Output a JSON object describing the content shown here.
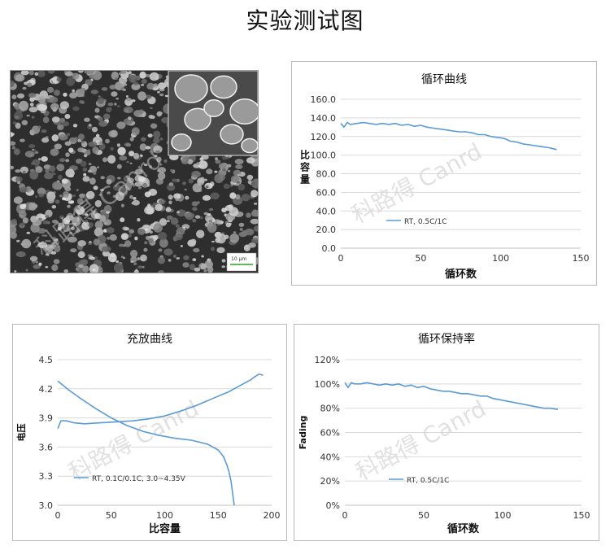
{
  "page_title": "实验测试图",
  "watermark": "科路得 Canrd",
  "sem_image": {
    "scale_label": "10 μm"
  },
  "chart_data": [
    {
      "type": "line",
      "title": "循环曲线",
      "xlabel": "循环数",
      "ylabel": "比\n容\n量",
      "xlim": [
        0,
        150
      ],
      "ylim": [
        0,
        160
      ],
      "x_ticks": [
        "0",
        "50",
        "100",
        "150"
      ],
      "y_ticks": [
        "0.0",
        "20.0",
        "40.0",
        "60.0",
        "80.0",
        "100.0",
        "120.0",
        "140.0",
        "160.0"
      ],
      "legend_position": "lower-left",
      "series": [
        {
          "name": "RT, 0.5C/1C",
          "color": "#5b9bd5",
          "x": [
            0,
            2,
            4,
            6,
            10,
            14,
            18,
            22,
            26,
            30,
            34,
            38,
            42,
            46,
            50,
            54,
            58,
            62,
            66,
            70,
            74,
            78,
            82,
            86,
            90,
            94,
            98,
            102,
            106,
            110,
            114,
            118,
            122,
            126,
            130,
            135
          ],
          "y": [
            134,
            130,
            135,
            133,
            134,
            135,
            134,
            133,
            134,
            133,
            134,
            132,
            133,
            131,
            132,
            130,
            129,
            128,
            127,
            126,
            125,
            125,
            124,
            122,
            122,
            120,
            119,
            118,
            115,
            114,
            112,
            111,
            110,
            109,
            108,
            106
          ]
        }
      ]
    },
    {
      "type": "line",
      "title": "充放曲线",
      "xlabel": "比容量",
      "ylabel": "电压",
      "xlim": [
        0,
        200
      ],
      "ylim": [
        3.0,
        4.5
      ],
      "x_ticks": [
        "0",
        "50",
        "100",
        "150",
        "200"
      ],
      "y_ticks": [
        "3.0",
        "3.3",
        "3.6",
        "3.9",
        "4.2",
        "4.5"
      ],
      "legend_position": "lower-left",
      "series": [
        {
          "name": "RT, 0.1C/0.1C, 3.0~4.35V",
          "color": "#5b9bd5",
          "x": [
            0,
            3,
            8,
            15,
            25,
            40,
            55,
            70,
            85,
            100,
            115,
            130,
            145,
            160,
            170,
            180,
            185,
            188,
            192
          ],
          "y": [
            3.79,
            3.87,
            3.87,
            3.85,
            3.84,
            3.85,
            3.86,
            3.87,
            3.89,
            3.92,
            3.97,
            4.03,
            4.1,
            4.17,
            4.23,
            4.29,
            4.33,
            4.35,
            4.34
          ]
        },
        {
          "name": "",
          "color": "#5b9bd5",
          "x": [
            0,
            10,
            20,
            35,
            50,
            65,
            80,
            95,
            110,
            125,
            140,
            150,
            155,
            158,
            160,
            162,
            163,
            164,
            165
          ],
          "y": [
            4.28,
            4.19,
            4.11,
            4.0,
            3.9,
            3.82,
            3.76,
            3.72,
            3.69,
            3.67,
            3.63,
            3.57,
            3.5,
            3.42,
            3.35,
            3.25,
            3.17,
            3.08,
            3.0
          ]
        }
      ]
    },
    {
      "type": "line",
      "title": "循环保持率",
      "xlabel": "循环数",
      "ylabel": "Fading",
      "xlim": [
        0,
        150
      ],
      "ylim": [
        0,
        120
      ],
      "x_ticks": [
        "0",
        "50",
        "100",
        "150"
      ],
      "y_ticks": [
        "0%",
        "20%",
        "40%",
        "60%",
        "80%",
        "100%",
        "120%"
      ],
      "legend_position": "lower-left",
      "series": [
        {
          "name": "RT, 0.5C/1C",
          "color": "#5b9bd5",
          "x": [
            0,
            2,
            4,
            6,
            10,
            14,
            18,
            22,
            26,
            30,
            34,
            38,
            42,
            46,
            50,
            54,
            58,
            62,
            66,
            70,
            74,
            78,
            82,
            86,
            90,
            94,
            98,
            102,
            106,
            110,
            114,
            118,
            122,
            126,
            130,
            135
          ],
          "y": [
            101,
            97,
            101,
            100,
            100,
            101,
            100,
            99,
            100,
            99,
            100,
            98,
            99,
            97,
            98,
            96,
            95,
            94,
            94,
            93,
            92,
            92,
            91,
            90,
            90,
            88,
            87,
            86,
            85,
            84,
            83,
            82,
            81,
            80,
            80,
            79
          ]
        }
      ]
    }
  ]
}
